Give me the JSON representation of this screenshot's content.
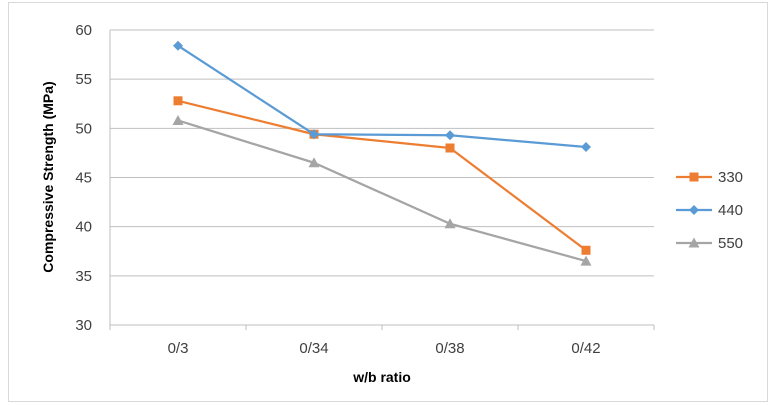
{
  "chart_data": {
    "type": "line",
    "title": "",
    "xlabel": "w/b ratio",
    "ylabel": "Compressive Strength (MPa)",
    "categories": [
      "0/3",
      "0/34",
      "0/38",
      "0/42"
    ],
    "ylim": [
      30,
      60
    ],
    "yticks": [
      30,
      35,
      40,
      45,
      50,
      55,
      60
    ],
    "grid": true,
    "legend_position": "right",
    "series": [
      {
        "name": "330",
        "color": "#ED7D31",
        "marker": "square",
        "values": [
          52.8,
          49.4,
          48.0,
          37.6
        ]
      },
      {
        "name": "440",
        "color": "#5B9BD5",
        "marker": "diamond",
        "values": [
          58.4,
          49.4,
          49.3,
          48.1
        ]
      },
      {
        "name": "550",
        "color": "#A5A5A5",
        "marker": "triangle",
        "values": [
          50.8,
          46.5,
          40.3,
          36.5
        ]
      }
    ]
  }
}
